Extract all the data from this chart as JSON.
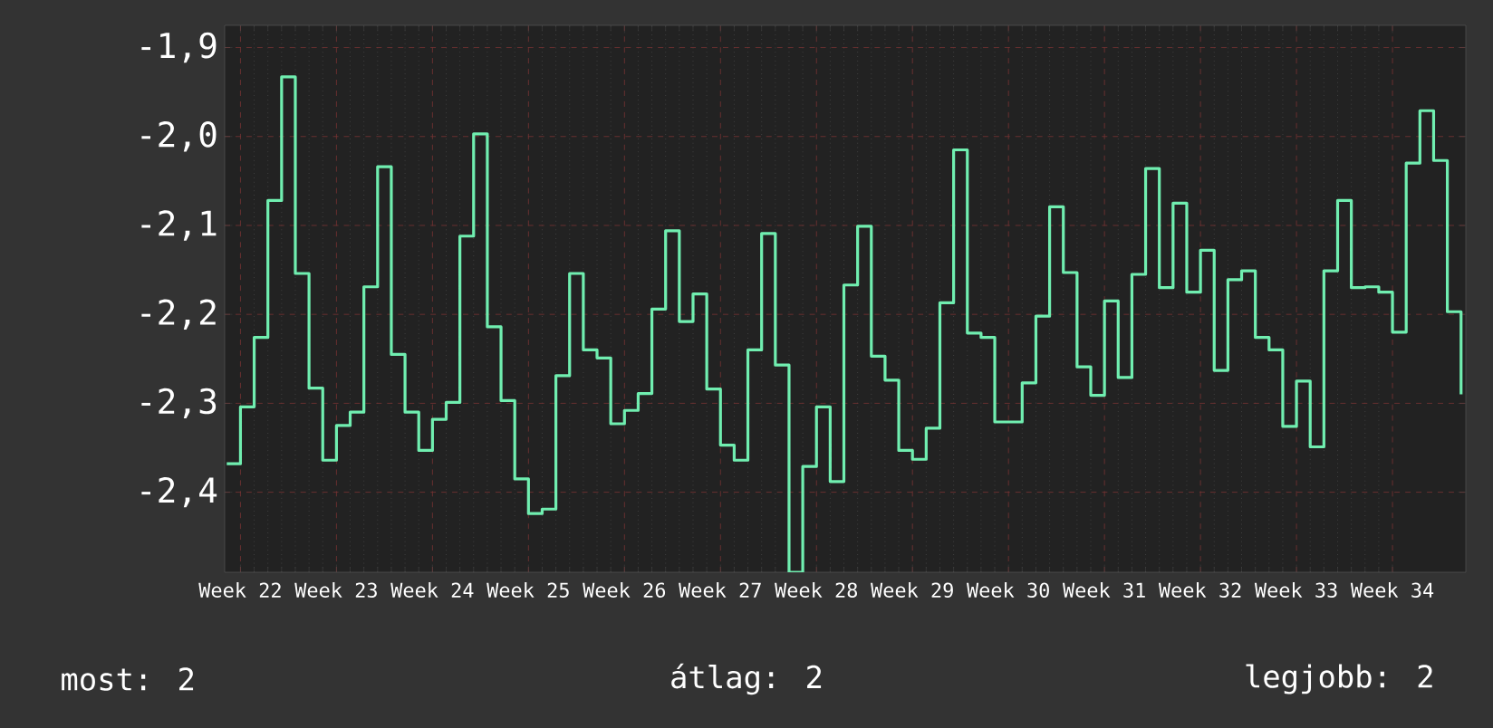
{
  "chart_data": {
    "type": "step",
    "categories": [
      null,
      "Week 22",
      null,
      null,
      null,
      null,
      null,
      null,
      "Week 23",
      null,
      null,
      null,
      null,
      null,
      null,
      "Week 24",
      null,
      null,
      null,
      null,
      null,
      null,
      "Week 25",
      null,
      null,
      null,
      null,
      null,
      null,
      "Week 26",
      null,
      null,
      null,
      null,
      null,
      null,
      "Week 27",
      null,
      null,
      null,
      null,
      null,
      null,
      "Week 28",
      null,
      null,
      null,
      null,
      null,
      null,
      "Week 29",
      null,
      null,
      null,
      null,
      null,
      null,
      "Week 30",
      null,
      null,
      null,
      null,
      null,
      null,
      "Week 31",
      null,
      null,
      null,
      null,
      null,
      null,
      "Week 32",
      null,
      null,
      null,
      null,
      null,
      null,
      "Week 33",
      null,
      null,
      null,
      null,
      null,
      null,
      "Week 34",
      null,
      null,
      null,
      null,
      null
    ],
    "values": [
      -2.368,
      -2.304,
      -2.226,
      -2.072,
      -1.933,
      -2.154,
      -2.283,
      -2.364,
      -2.325,
      -2.31,
      -2.169,
      -2.034,
      -2.245,
      -2.31,
      -2.353,
      -2.318,
      -2.299,
      -2.112,
      -1.997,
      -2.214,
      -2.297,
      -2.385,
      -2.424,
      -2.419,
      -2.269,
      -2.154,
      -2.24,
      -2.249,
      -2.323,
      -2.308,
      -2.289,
      -2.194,
      -2.106,
      -2.208,
      -2.177,
      -2.284,
      -2.347,
      -2.364,
      -2.24,
      -2.109,
      -2.257,
      -2.49,
      -2.371,
      -2.304,
      -2.388,
      -2.167,
      -2.101,
      -2.247,
      -2.274,
      -2.353,
      -2.363,
      -2.328,
      -2.187,
      -2.015,
      -2.221,
      -2.226,
      -2.321,
      -2.321,
      -2.277,
      -2.202,
      -2.079,
      -2.153,
      -2.259,
      -2.291,
      -2.185,
      -2.271,
      -2.155,
      -2.036,
      -2.17,
      -2.075,
      -2.175,
      -2.128,
      -2.263,
      -2.161,
      -2.151,
      -2.226,
      -2.24,
      -2.326,
      -2.275,
      -2.349,
      -2.151,
      -2.072,
      -2.17,
      -2.169,
      -2.175,
      -2.22,
      -2.03,
      -1.971,
      -2.027,
      -2.197,
      -2.29
    ],
    "color": "#70eeb0",
    "ylim": [
      -2.49,
      -1.875
    ],
    "yticks": [
      {
        "value": -2.4,
        "label": "-2,4"
      },
      {
        "value": -2.3,
        "label": "-2,3"
      },
      {
        "value": -2.2,
        "label": "-2,2"
      },
      {
        "value": -2.1,
        "label": "-2,1"
      },
      {
        "value": -2.0,
        "label": "-2,0"
      },
      {
        "value": -1.9,
        "label": "-1,9"
      }
    ],
    "grid": true,
    "marker": "none",
    "line_style": "solid",
    "annotations": [
      "most: 2",
      "átlag: 2",
      "legjobb: 2"
    ]
  }
}
